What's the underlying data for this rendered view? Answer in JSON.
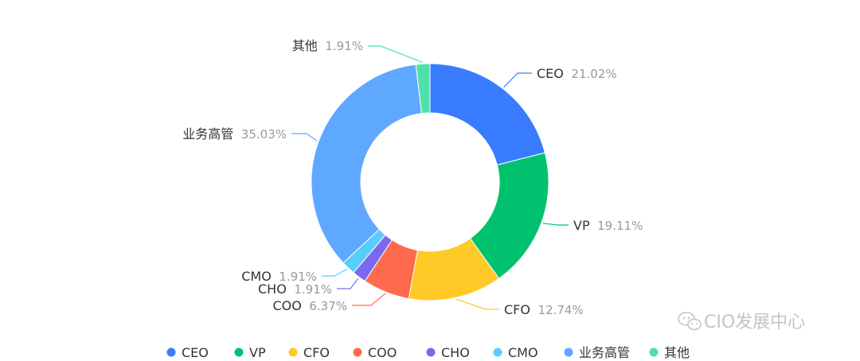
{
  "chart_data": {
    "type": "pie",
    "style": "donut",
    "title": "",
    "legend_position": "bottom",
    "categories": [
      "CEO",
      "VP",
      "CFO",
      "COO",
      "CHO",
      "CMO",
      "业务高管",
      "其他"
    ],
    "values": [
      21.02,
      19.11,
      12.74,
      6.37,
      1.91,
      1.91,
      35.03,
      1.91
    ],
    "value_labels": [
      "21.02%",
      "19.11%",
      "12.74%",
      "6.37%",
      "1.91%",
      "1.91%",
      "35.03%",
      "1.91%"
    ],
    "colors": [
      "#3a7cff",
      "#00c26e",
      "#ffc928",
      "#ff6a4d",
      "#7b68ee",
      "#58cdfb",
      "#5ea8ff",
      "#4ee0a9"
    ]
  },
  "watermark": {
    "text": "CIO发展中心",
    "icon": "wechat-icon"
  }
}
